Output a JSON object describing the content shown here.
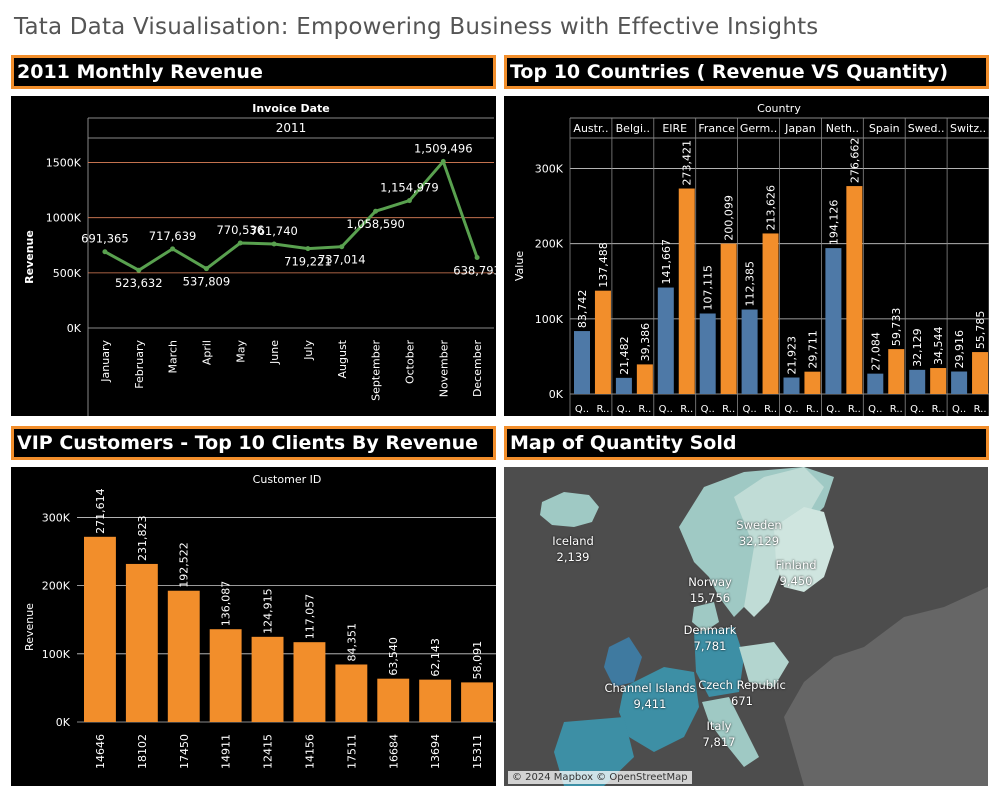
{
  "page_title": "Tata Data Visualisation: Empowering Business with Effective Insights",
  "colors": {
    "accent": "#f28e2b",
    "blue": "#4e79a7",
    "green": "#59a14f",
    "map_dark": "#4d4d4d"
  },
  "panels": {
    "p1": "2011 Monthly Revenue",
    "p2": "Top 10 Countries ( Revenue VS Quantity)",
    "p3": "VIP Customers - Top 10 Clients By Revenue",
    "p4": "Map of Quantity Sold"
  },
  "chart_data": [
    {
      "type": "line",
      "title": "2011 Monthly Revenue",
      "header": "Invoice Date",
      "subheader": "2011",
      "ylabel": "Revenue",
      "ylim": [
        0,
        1650000
      ],
      "yticks": [
        0,
        500000,
        1000000,
        1500000
      ],
      "ytick_labels": [
        "0K",
        "500K",
        "1000K",
        "1500K"
      ],
      "categories": [
        "January",
        "February",
        "March",
        "April",
        "May",
        "June",
        "July",
        "August",
        "September",
        "October",
        "November",
        "December"
      ],
      "values": [
        691365,
        523632,
        717639,
        537809,
        770536,
        761740,
        719221,
        737014,
        1058590,
        1154979,
        1509496,
        638793
      ],
      "labels": [
        "691,365",
        "523,632",
        "717,639",
        "537,809",
        "770,536",
        "761,740",
        "719,221",
        "737,014",
        "1,058,590",
        "1,154,979",
        "1,509,496",
        "638,793"
      ],
      "grid": true
    },
    {
      "type": "bar",
      "title": "Top 10 Countries ( Revenue VS Quantity)",
      "header": "Country",
      "ylabel": "Value",
      "ylim": [
        0,
        330000
      ],
      "yticks": [
        0,
        100000,
        200000,
        300000
      ],
      "ytick_labels": [
        "0K",
        "100K",
        "200K",
        "300K"
      ],
      "categories": [
        "Austr..",
        "Belgi..",
        "EIRE",
        "France",
        "Germ..",
        "Japan",
        "Neth..",
        "Spain",
        "Swed..",
        "Switz.."
      ],
      "sub_labels": [
        "Q..",
        "R.."
      ],
      "series": [
        {
          "values": [
            83742,
            21482,
            141667,
            107115,
            112385,
            21923,
            194126,
            27084,
            32129,
            29916
          ],
          "labels": [
            "83,742",
            "21,482",
            "141,667",
            "107,115",
            "112,385",
            "21,923",
            "194,126",
            "27,084",
            "32,129",
            "29,916"
          ]
        },
        {
          "values": [
            137488,
            39386,
            273421,
            200099,
            213626,
            29711,
            276662,
            59733,
            34544,
            55785
          ],
          "labels": [
            "137,488",
            "39,386",
            "273,421",
            "200,099",
            "213,626",
            "29,711",
            "276,662",
            "59,733",
            "34,544",
            "55,785"
          ]
        }
      ]
    },
    {
      "type": "bar",
      "title": "VIP Customers - Top 10 Clients By Revenue",
      "header": "Customer ID",
      "ylabel": "Revenue",
      "ylim": [
        0,
        330000
      ],
      "yticks": [
        0,
        100000,
        200000,
        300000
      ],
      "ytick_labels": [
        "0K",
        "100K",
        "200K",
        "300K"
      ],
      "categories": [
        "14646",
        "18102",
        "17450",
        "14911",
        "12415",
        "14156",
        "17511",
        "16684",
        "13694",
        "15311"
      ],
      "values": [
        271614,
        231823,
        192522,
        136087,
        124915,
        117057,
        84351,
        63540,
        62143,
        58091
      ],
      "labels": [
        "271,614",
        "231,823",
        "192,522",
        "136,087",
        "124,915",
        "117,057",
        "84,351",
        "63,540",
        "62,143",
        "58,091"
      ]
    }
  ],
  "map": {
    "labels": [
      {
        "name": "Iceland",
        "value": "2,139"
      },
      {
        "name": "Sweden",
        "value": "32,129"
      },
      {
        "name": "Finland",
        "value": "9,450"
      },
      {
        "name": "Norway",
        "value": "15,756"
      },
      {
        "name": "Denmark",
        "value": "7,781"
      },
      {
        "name": "Channel Islands",
        "value": "9,411"
      },
      {
        "name": "Czech Republic",
        "value": "671"
      },
      {
        "name": "Italy",
        "value": "7,817"
      }
    ],
    "attribution": "© 2024 Mapbox © OpenStreetMap"
  }
}
